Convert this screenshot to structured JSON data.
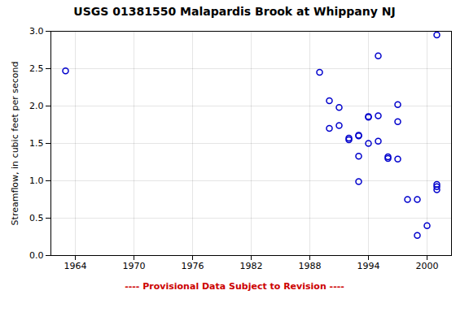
{
  "chart_data": {
    "type": "scatter",
    "title": "USGS 01381550 Malapardis Brook at Whippany NJ",
    "ylabel": "Streamflow, in cubic feet per second",
    "x": [
      1963,
      1989,
      1990,
      1990,
      1991,
      1991,
      1992,
      1992,
      1993,
      1993,
      1993,
      1993,
      1994,
      1994,
      1994,
      1995,
      1995,
      1995,
      1996,
      1996,
      1997,
      1997,
      1997,
      1998,
      1999,
      1999,
      2000,
      2001,
      2001,
      2001,
      2001
    ],
    "values": [
      2.47,
      2.45,
      2.07,
      1.7,
      1.98,
      1.74,
      1.57,
      1.55,
      0.99,
      1.33,
      1.6,
      1.61,
      1.85,
      1.86,
      1.5,
      2.67,
      1.87,
      1.53,
      1.32,
      1.3,
      2.02,
      1.79,
      1.29,
      0.75,
      0.27,
      0.75,
      0.4,
      2.95,
      0.95,
      0.92,
      0.88
    ],
    "color": "#0000cc",
    "marker": "open_circle",
    "xlim": [
      1961.5,
      2002.5
    ],
    "ylim": [
      0,
      3
    ],
    "xticks": [
      1964,
      1970,
      1976,
      1982,
      1988,
      1994,
      2000
    ],
    "yticks": [
      {
        "value": 0,
        "label": "0.0"
      },
      0.5,
      {
        "value": 1,
        "label": "1.0"
      },
      1.5,
      {
        "value": 2,
        "label": "2.0"
      },
      2.5,
      {
        "value": 3,
        "label": "3.0"
      }
    ],
    "grid": true,
    "annotations": [
      {
        "text": "---- Provisional Data Subject to Revision ----",
        "color": "#cc0000"
      }
    ]
  }
}
